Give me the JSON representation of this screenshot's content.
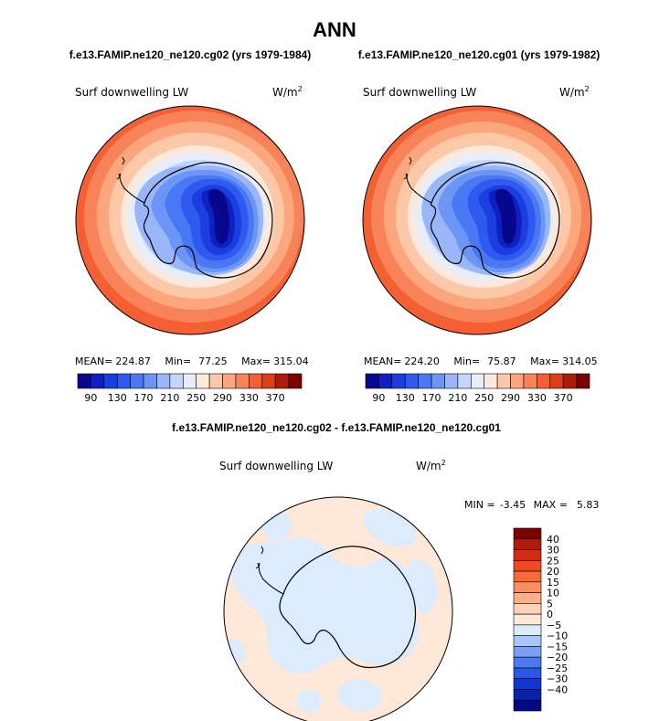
{
  "figure": {
    "title": "ANN"
  },
  "chart_data": [
    {
      "type": "polar-contour-map",
      "case_title": "f.e13.FAMIP.ne120_ne120.cg02 (yrs 1979-1984)",
      "variable": "Surf downwelling LW",
      "units_base": "W/m",
      "units_exp": "2",
      "stats": {
        "mean_label": "MEAN=",
        "mean": "224.87",
        "min_label": "Min=",
        "min": "77.25",
        "max_label": "Max=",
        "max": "315.04"
      },
      "colorbar_ticks": [
        "90",
        "130",
        "170",
        "210",
        "250",
        "290",
        "330",
        "370"
      ],
      "levels": [
        70,
        90,
        110,
        130,
        150,
        170,
        190,
        210,
        230,
        250,
        270,
        290,
        310,
        330,
        350,
        370
      ]
    },
    {
      "type": "polar-contour-map",
      "case_title": "f.e13.FAMIP.ne120_ne120.cg01 (yrs 1979-1982)",
      "variable": "Surf downwelling LW",
      "units_base": "W/m",
      "units_exp": "2",
      "stats": {
        "mean_label": "MEAN=",
        "mean": "224.20",
        "min_label": "Min=",
        "min": "75.87",
        "max_label": "Max=",
        "max": "314.05"
      },
      "colorbar_ticks": [
        "90",
        "130",
        "170",
        "210",
        "250",
        "290",
        "330",
        "370"
      ],
      "levels": [
        70,
        90,
        110,
        130,
        150,
        170,
        190,
        210,
        230,
        250,
        270,
        290,
        310,
        330,
        350,
        370
      ]
    },
    {
      "type": "polar-contour-map-difference",
      "case_title": "f.e13.FAMIP.ne120_ne120.cg02 - f.e13.FAMIP.ne120_ne120.cg01",
      "variable": "Surf downwelling LW",
      "units_base": "W/m",
      "units_exp": "2",
      "stats": {
        "min_label": "MIN =",
        "min": "-3.45",
        "max_label": "MAX =",
        "max": "5.83"
      },
      "colorbar_ticks": [
        "40",
        "30",
        "25",
        "20",
        "15",
        "10",
        "5",
        "0",
        "−5",
        "−10",
        "−15",
        "−20",
        "−25",
        "−30",
        "−40"
      ]
    }
  ],
  "colors": {
    "abs_scale": [
      "#08088e",
      "#1020c0",
      "#1b3ee0",
      "#2e5af0",
      "#4a78f4",
      "#6b96f6",
      "#98b6f8",
      "#c3d6fb",
      "#e6eefc",
      "#fde8dc",
      "#fcc8a8",
      "#fba67c",
      "#f98358",
      "#f55f34",
      "#de3d1a",
      "#b01a08",
      "#7d0000"
    ],
    "diff_scale": [
      "#7d0000",
      "#b01a08",
      "#d42a10",
      "#f0481e",
      "#f86a3a",
      "#fa8e5e",
      "#fcb08a",
      "#fdd2b8",
      "#ffe8d8",
      "#dcecfc",
      "#a8c6f8",
      "#7aa0f4",
      "#4c78f0",
      "#2a56e6",
      "#1236d2",
      "#0a22a8",
      "#040a82"
    ]
  }
}
